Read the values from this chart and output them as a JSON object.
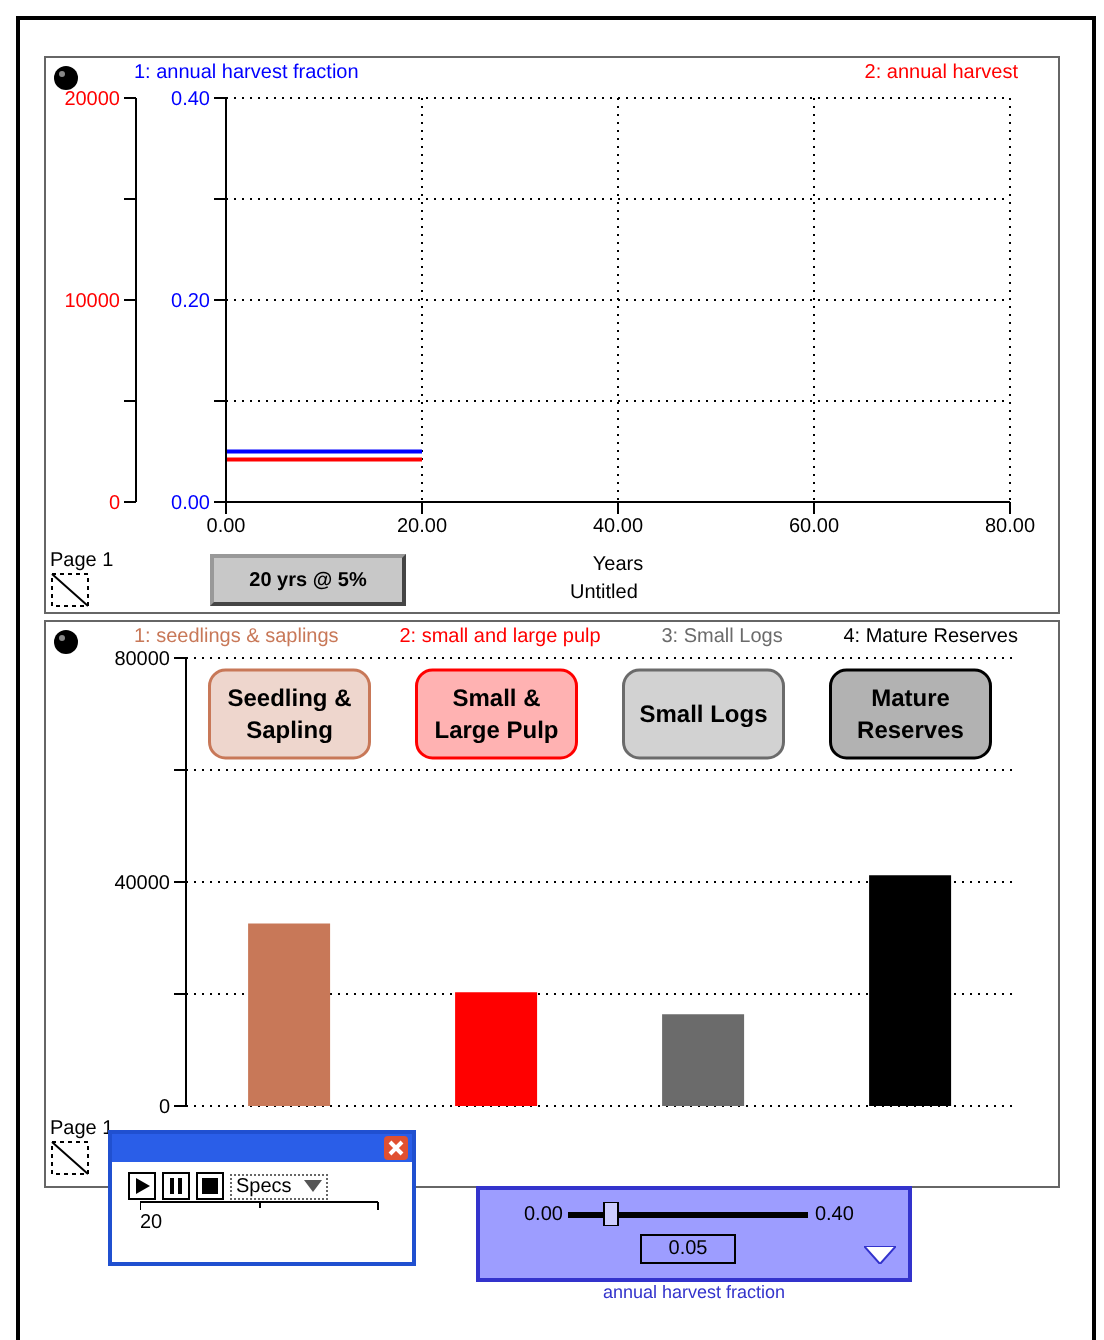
{
  "chart_data": [
    {
      "type": "line",
      "xlabel": "Years",
      "x": [
        0,
        20
      ],
      "xlim": [
        0,
        80
      ],
      "xticks": [
        {
          "value": 0,
          "label": "0.00"
        },
        {
          "value": 20,
          "label": "20.00"
        },
        {
          "value": 40,
          "label": "40.00"
        },
        {
          "value": 60,
          "label": "60.00"
        },
        {
          "value": 80,
          "label": "80.00"
        }
      ],
      "ylim": [
        0,
        0.4
      ],
      "yticks": [
        {
          "value": 0,
          "label": "0.00"
        },
        {
          "value": 0.1,
          "label": null
        },
        {
          "value": 0.2,
          "label": "0.20"
        },
        {
          "value": 0.3,
          "label": null
        },
        {
          "value": 0.4,
          "label": "0.40"
        }
      ],
      "y2lim": [
        0,
        20000
      ],
      "y2ticks": [
        0,
        {
          "value": 5000,
          "label": null
        },
        10000,
        {
          "value": 15000,
          "label": null
        },
        20000
      ],
      "series": [
        {
          "name": "1: annual harvest fraction",
          "color": "#0000ff",
          "values": [
            0.05,
            0.05
          ]
        },
        {
          "name": "2: annual harvest",
          "color": "#ff0000",
          "values": [
            2100,
            2100
          ],
          "axis": "y2"
        }
      ],
      "grid": true,
      "legend": "top",
      "marker": "none",
      "line_style": "solid",
      "annotations": [
        "Page 1",
        "20 yrs @ 5%",
        "Untitled"
      ]
    },
    {
      "type": "bar",
      "categories": [
        "Seedling & Sapling",
        "Small & Large Pulp",
        "Small Logs",
        "Mature Reserves"
      ],
      "ylim": [
        0,
        80000
      ],
      "yticks": [
        0,
        {
          "value": 20000,
          "label": null
        },
        40000,
        {
          "value": 60000,
          "label": null
        },
        80000
      ],
      "series": [
        {
          "name": "1: seedlings & saplings",
          "color": "#c87858",
          "values": [
            32600,
            null,
            null,
            null
          ]
        },
        {
          "name": "2: small and large pulp",
          "color": "#ff0000",
          "values": [
            null,
            20300,
            null,
            null
          ]
        },
        {
          "name": "3: Small Logs",
          "color": "#6b6b6b",
          "values": [
            null,
            null,
            16400,
            null
          ]
        },
        {
          "name": "4: Mature Reserves",
          "color": "#000000",
          "values": [
            null,
            null,
            null,
            41200
          ]
        }
      ],
      "stacked": true,
      "grid": "y",
      "legend": "top",
      "annotations": [
        "Page 1"
      ]
    },
    {
      "type": "other",
      "annotations": [
        "Specs",
        "20",
        "0.00",
        "0.40",
        "0.05",
        "annual harvest fraction"
      ]
    }
  ]
}
